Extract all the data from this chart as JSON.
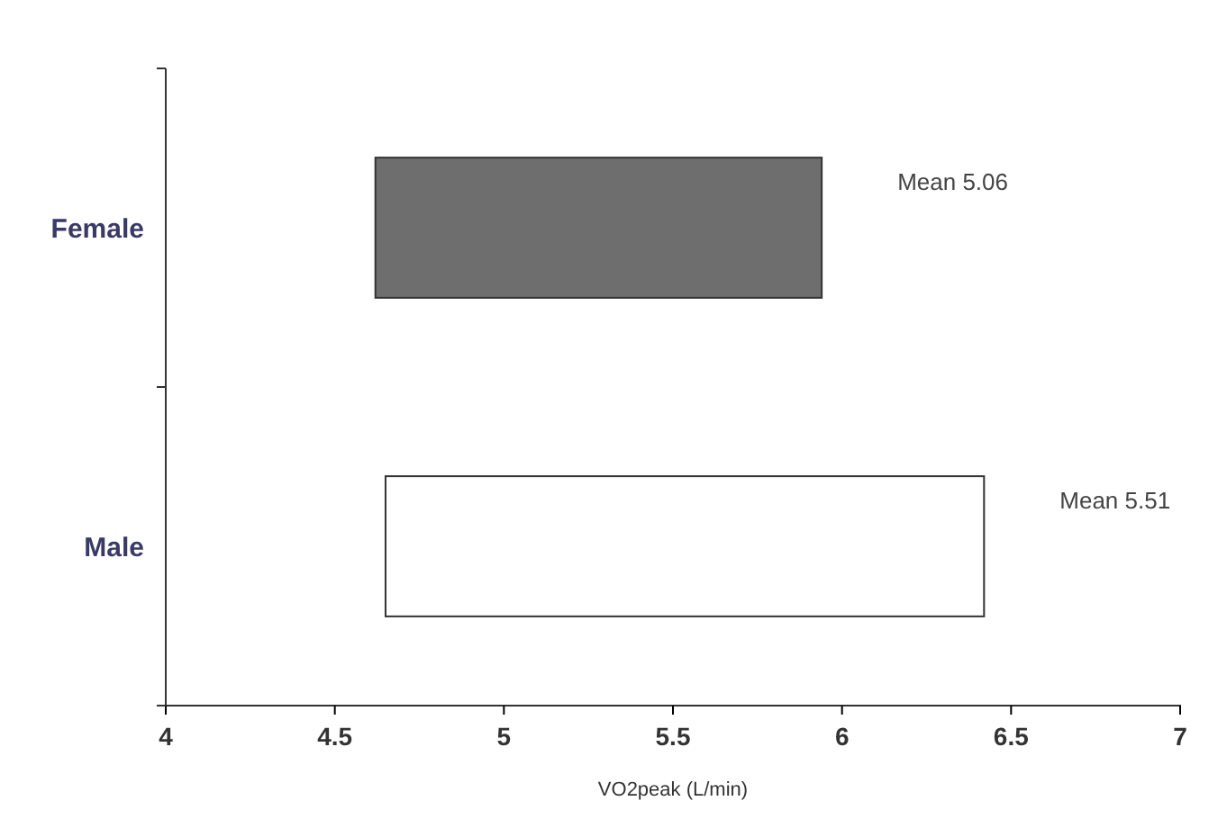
{
  "chart_data": {
    "type": "bar",
    "orientation": "horizontal",
    "categories": [
      "Female",
      "Male"
    ],
    "base": [
      4.62,
      4.65
    ],
    "values": [
      1.32,
      1.77
    ],
    "colors": [
      "#6e6e6e",
      "#ffffff"
    ],
    "xlim": [
      4,
      7
    ],
    "xticks": [
      4,
      4.5,
      5,
      5.5,
      6,
      6.5,
      7
    ],
    "xlabel": "VO2peak (L/min)",
    "annotations": [
      "Mean 5.06",
      "Mean 5.51"
    ],
    "grid": false
  }
}
